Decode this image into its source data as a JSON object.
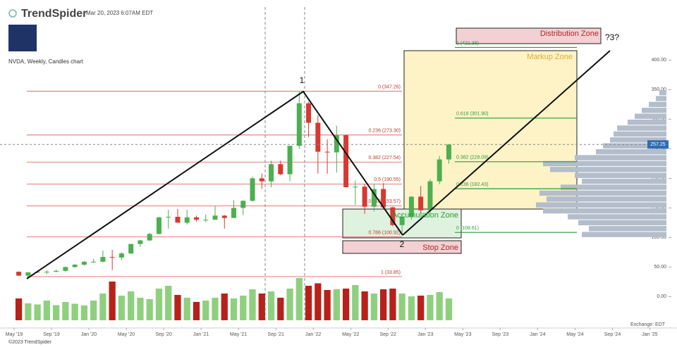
{
  "header": {
    "brand": "TrendSpider",
    "timestamp": "Mar 20, 2023 6:07AM EDT",
    "chart_label": "NVDA, Weekly, Candles chart"
  },
  "footer": {
    "copyright": "©2023 TrendSpider",
    "exchange": "Exchange: EDT"
  },
  "chart_data": {
    "type": "candlestick",
    "up_color": "#4caf50",
    "down_color": "#d43a32",
    "volume_up_color": "#8fd07f",
    "volume_down_color": "#b8211a",
    "x": [
      "2019-05",
      "2019-06",
      "2019-07",
      "2019-08",
      "2019-09",
      "2019-10",
      "2019-11",
      "2019-12",
      "2020-01",
      "2020-02",
      "2020-03",
      "2020-04",
      "2020-05",
      "2020-06",
      "2020-07",
      "2020-08",
      "2020-09",
      "2020-10",
      "2020-11",
      "2020-12",
      "2021-01",
      "2021-02",
      "2021-03",
      "2021-04",
      "2021-05",
      "2021-06",
      "2021-07",
      "2021-08",
      "2021-09",
      "2021-10",
      "2021-11",
      "2021-12",
      "2022-01",
      "2022-02",
      "2022-03",
      "2022-04",
      "2022-05",
      "2022-06",
      "2022-07",
      "2022-08",
      "2022-09",
      "2022-10",
      "2022-11",
      "2022-12",
      "2023-01",
      "2023-02",
      "2023-03"
    ],
    "open": [
      42,
      35.5,
      41,
      42,
      42,
      43.5,
      50,
      54,
      59,
      59,
      67,
      66,
      73,
      89,
      95,
      106,
      134,
      135,
      125,
      134,
      130,
      130,
      137,
      133,
      150,
      162,
      200,
      195,
      224,
      207,
      255,
      327,
      294,
      245,
      244,
      273,
      185,
      186,
      152,
      182,
      151,
      121,
      135,
      169,
      146,
      195,
      232
    ],
    "high": [
      42.5,
      41,
      44,
      45,
      46,
      51,
      55,
      60,
      64,
      78,
      79,
      75,
      89,
      96,
      108,
      135,
      147,
      148,
      147,
      137,
      139,
      153,
      138,
      163,
      163,
      203,
      208,
      230,
      230,
      255,
      347.26,
      330,
      307,
      266,
      289,
      274,
      196,
      190,
      191,
      192,
      152,
      139,
      170,
      187,
      199,
      238,
      258
    ],
    "low": [
      35,
      33.85,
      40,
      38,
      41,
      42,
      49,
      52,
      57,
      58,
      45,
      62,
      72,
      84,
      94,
      105,
      115,
      125,
      122,
      127,
      126,
      130,
      115,
      133,
      138,
      161,
      182,
      185,
      205,
      195,
      250,
      270,
      208,
      208,
      210,
      185,
      155,
      140,
      144,
      150,
      119,
      108.61,
      130,
      140,
      140,
      190,
      225
    ],
    "close": [
      35.5,
      41,
      42,
      42,
      43.5,
      50,
      54,
      59,
      59,
      67,
      66,
      73,
      89,
      95,
      106,
      134,
      135,
      125,
      134,
      130,
      130,
      137,
      133,
      150,
      162,
      200,
      195,
      224,
      207,
      255,
      327,
      294,
      245,
      244,
      273,
      185,
      186,
      152,
      182,
      151,
      121,
      135,
      169,
      146,
      195,
      232,
      257.25
    ],
    "volume": [
      620,
      480,
      450,
      560,
      430,
      520,
      470,
      420,
      560,
      760,
      1100,
      700,
      820,
      640,
      600,
      900,
      980,
      720,
      640,
      520,
      560,
      640,
      760,
      620,
      700,
      880,
      760,
      820,
      640,
      900,
      1200,
      980,
      1050,
      860,
      880,
      900,
      1000,
      820,
      760,
      880,
      900,
      760,
      680,
      700,
      720,
      800,
      620
    ],
    "xlim": [
      "2019-04",
      "2025-03"
    ],
    "xticks": [
      {
        "value": "2019-05",
        "label": "May '19"
      },
      {
        "value": "2019-09",
        "label": "Sep '19"
      },
      {
        "value": "2020-01",
        "label": "Jan '20"
      },
      {
        "value": "2020-05",
        "label": "May '20"
      },
      {
        "value": "2020-09",
        "label": "Sep '20"
      },
      {
        "value": "2021-01",
        "label": "Jan '21"
      },
      {
        "value": "2021-05",
        "label": "May '21"
      },
      {
        "value": "2021-09",
        "label": "Sep '21"
      },
      {
        "value": "2022-01",
        "label": "Jan '22"
      },
      {
        "value": "2022-05",
        "label": "May '22"
      },
      {
        "value": "2022-09",
        "label": "Sep '22"
      },
      {
        "value": "2023-01",
        "label": "Jan '23"
      },
      {
        "value": "2023-05",
        "label": "May '23"
      },
      {
        "value": "2023-09",
        "label": "Sep '23"
      },
      {
        "value": "2024-01",
        "label": "Jan '24"
      },
      {
        "value": "2024-05",
        "label": "May '24"
      },
      {
        "value": "2024-09",
        "label": "Sep '24"
      },
      {
        "value": "2025-01",
        "label": "Jan '25"
      }
    ],
    "ylim": [
      -40,
      485
    ],
    "yticks": [
      {
        "value": 0,
        "label": "0.00"
      },
      {
        "value": 50,
        "label": "50.00"
      },
      {
        "value": 100,
        "label": "100.00"
      },
      {
        "value": 150,
        "label": "150.00"
      },
      {
        "value": 200,
        "label": "200.00"
      },
      {
        "value": 250,
        "label": "250.00"
      },
      {
        "value": 300,
        "label": "300.00"
      },
      {
        "value": 350,
        "label": "350.00"
      },
      {
        "value": 400,
        "label": "400.00"
      }
    ],
    "last_price": 257.25,
    "fib_left": [
      {
        "value": 347.26,
        "label": "0 (347.26)"
      },
      {
        "value": 273.3,
        "label": "0.236 (273.30)"
      },
      {
        "value": 227.54,
        "label": "0.382 (227.54)"
      },
      {
        "value": 190.55,
        "label": "0.5 (190.55)"
      },
      {
        "value": 153.57,
        "label": "0.618 (153.57)"
      },
      {
        "value": 100.92,
        "label": "0.786 (100.92)"
      },
      {
        "value": 33.85,
        "label": "1 (33.85)"
      }
    ],
    "fib_right": [
      {
        "value": 421.38,
        "label": "1 (421.38)"
      },
      {
        "value": 301.9,
        "label": "0.618 (301.90)"
      },
      {
        "value": 228.09,
        "label": "0.382 (228.09)"
      },
      {
        "value": 182.43,
        "label": "0.236 (182.43)"
      },
      {
        "value": 108.61,
        "label": "0 (108.61)"
      }
    ],
    "volume_profile": {
      "color": "#b3bdcb",
      "bins": [
        100,
        110,
        120,
        130,
        140,
        150,
        160,
        170,
        180,
        190,
        200,
        210,
        220,
        230,
        240,
        250,
        260,
        270,
        280,
        290,
        300,
        310,
        320,
        330,
        340,
        350
      ],
      "values": [
        120,
        110,
        125,
        140,
        175,
        185,
        170,
        180,
        150,
        120,
        130,
        165,
        175,
        130,
        100,
        90,
        80,
        75,
        70,
        55,
        45,
        35,
        25,
        15,
        10
      ]
    },
    "zones": [
      "Distribution Zone",
      "Markup Zone",
      "Accumulation Zone",
      "Stop Zone"
    ],
    "wave_labels": [
      "1",
      "2",
      "?3?"
    ]
  }
}
